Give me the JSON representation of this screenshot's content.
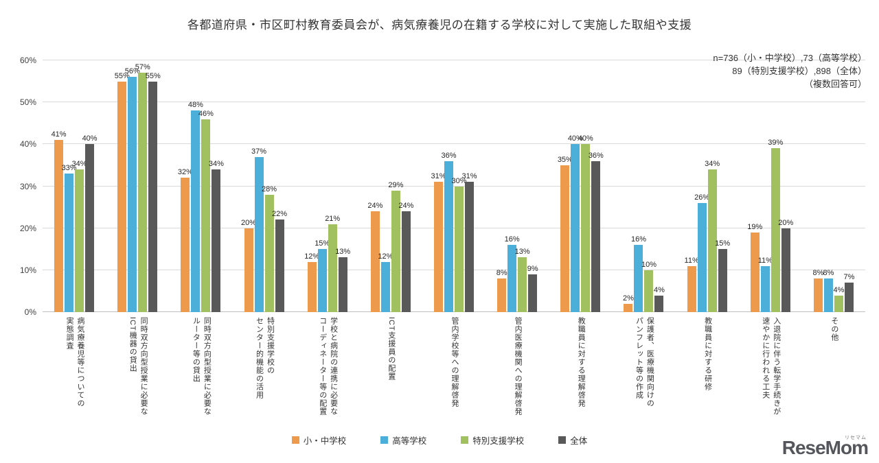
{
  "title": "各都道府県・市区町村教育委員会が、病気療養児の在籍する学校に対して実施した取組や支援",
  "note_lines": [
    "n=736（小・中学校）,73（高等学校）",
    "89（特別支援学校）,898（全体）",
    "（複数回答可）"
  ],
  "logo": {
    "main": "ReseMom",
    "ruby": "リセマム"
  },
  "colors": {
    "elementary": "#EE9A4D",
    "high_school": "#4BAFDA",
    "special_support": "#A1C05F",
    "overall": "#595959",
    "gridline": "#D9D9D9",
    "axis": "#BFBFBF"
  },
  "chart_data": {
    "type": "bar",
    "title": "各都道府県・市区町村教育委員会が、病気療養児の在籍する学校に対して実施した取組や支援",
    "xlabel": "",
    "ylabel": "",
    "ylim": [
      0,
      60
    ],
    "ytick_step": 10,
    "ytick_suffix": "%",
    "value_suffix": "%",
    "grid": true,
    "legend_position": "bottom",
    "categories": [
      "病気療養児等についての\n実態調査",
      "同時双方向型授業に必要な\nICT機器の貸出",
      "同時双方向型授業に必要な\nルーター等の貸出",
      "特別支援学校の\nセンター的機能の活用",
      "学校と病院の連携に必要な\nコーディネーター等の配置",
      "ICT支援員の配置",
      "管内学校等への理解啓発",
      "管内医療機関への理解啓発",
      "教職員に対する理解啓発",
      "保護者、医療機関向けの\nパンフレット等の作成",
      "教職員に対する研修",
      "入退院に伴う転学手続きが\n速やかに行われる工夫",
      "その他"
    ],
    "series": [
      {
        "name": "小・中学校",
        "color": "#EE9A4D",
        "values": [
          41,
          55,
          32,
          20,
          12,
          24,
          31,
          8,
          35,
          2,
          11,
          19,
          8
        ]
      },
      {
        "name": "高等学校",
        "color": "#4BAFDA",
        "values": [
          33,
          56,
          48,
          37,
          15,
          12,
          36,
          16,
          40,
          16,
          26,
          11,
          8
        ]
      },
      {
        "name": "特別支援学校",
        "color": "#A1C05F",
        "values": [
          34,
          57,
          46,
          28,
          21,
          29,
          30,
          13,
          40,
          10,
          34,
          39,
          4
        ]
      },
      {
        "name": "全体",
        "color": "#595959",
        "values": [
          40,
          55,
          34,
          22,
          13,
          24,
          31,
          9,
          36,
          4,
          15,
          20,
          7
        ]
      }
    ]
  }
}
